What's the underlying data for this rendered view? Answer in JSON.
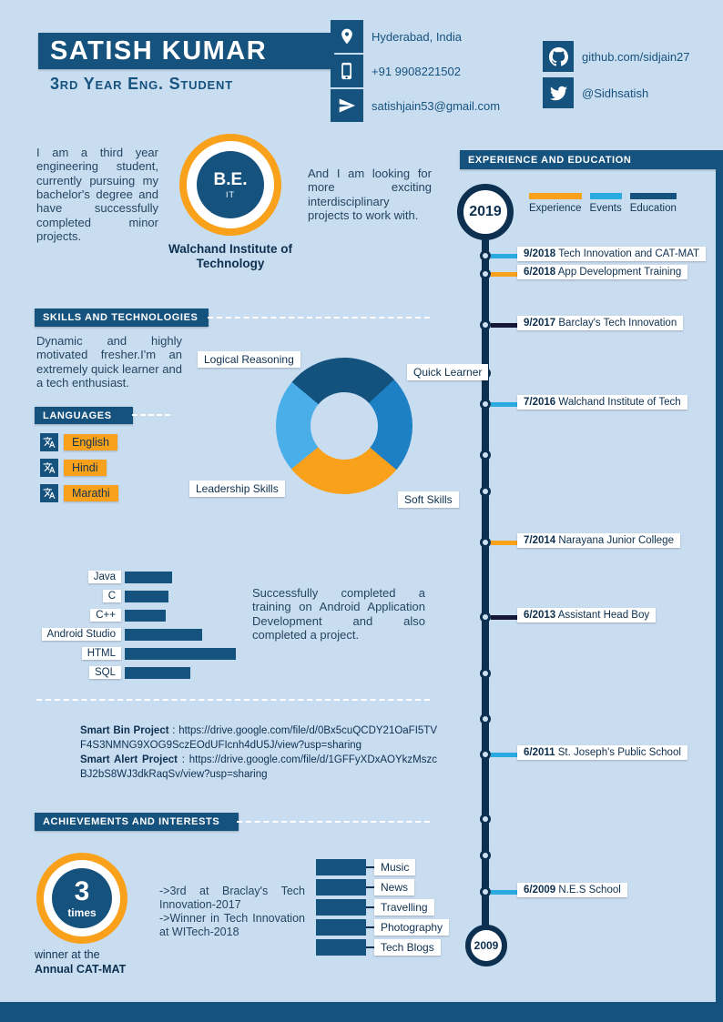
{
  "page": {
    "bg": "#c9ddf1",
    "brand_dark": "#16527e",
    "navy": "#0d3050",
    "orange": "#f9a11b",
    "lightblue": "#29abe2"
  },
  "header": {
    "name": "SATISH KUMAR",
    "subtitle": "3rd Year Eng. Student",
    "contacts": [
      {
        "icon": "location-pin",
        "text": "Hyderabad, India"
      },
      {
        "icon": "mobile-phone",
        "text": "+91 9908221502"
      },
      {
        "icon": "paper-plane",
        "text": "satishjain53@gmail.com"
      }
    ],
    "social": [
      {
        "icon": "github",
        "text": "github.com/sidjain27"
      },
      {
        "icon": "twitter",
        "text": "@Sidhsatish"
      }
    ]
  },
  "about": {
    "intro": "I am a third year engineering student, currently pursuing my bachelor's degree and have successfully completed minor projects.",
    "badge_title": "B.E.",
    "badge_sub": "IT",
    "institute": "Walchand Institute of Technology",
    "outro": "And I am looking for more exciting interdisciplinary projects to work with."
  },
  "skills": {
    "title": "SKILLS AND TECHNOLOGIES",
    "description": "Dynamic and highly motivated fresher.I'm an extremely quick learner and a tech enthusiast."
  },
  "languages": {
    "title": "LANGUAGES",
    "items": [
      "English",
      "Hindi",
      "Marathi"
    ]
  },
  "strengths_donut": {
    "type": "pie",
    "labels": [
      "Logical Reasoning",
      "Quick Learner",
      "Soft Skills",
      "Leadership Skills"
    ],
    "values": [
      27,
      23,
      28,
      22
    ],
    "colors": [
      "#14527e",
      "#1d80c4",
      "#f9a11b",
      "#4aaee8"
    ]
  },
  "tech_chart": {
    "type": "bar",
    "categories": [
      "Java",
      "C",
      "C++",
      "Android Studio",
      "HTML",
      "SQL"
    ],
    "values": [
      43,
      39,
      37,
      70,
      100,
      59
    ],
    "max": 100
  },
  "training_note": "Successfully completed a training on Android Application Development and also completed a project.",
  "projects": [
    {
      "label": "Smart Bin Project",
      "url": "https://drive.google.com/file/d/0Bx5cuQCDY21OaFI5TVF4S3NMNG9XOG9SczEOdUFIcnh4dU5J/view?usp=sharing"
    },
    {
      "label": "Smart Alert Project",
      "url": "https://drive.google.com/file/d/1GFFyXDxAOYkzMszcBJ2bS8WJ3dkRaqSv/view?usp=sharing"
    }
  ],
  "achievements": {
    "title": "ACHIEVEMENTS AND INTERESTS",
    "badge_number": "3",
    "badge_label": "times",
    "caption_line1": "winner at the",
    "caption_line2": "Annual CAT-MAT",
    "notes": [
      "->3rd at Braclay's Tech Innovation-2017",
      "->Winner in Tech Innovation at WITech-2018"
    ]
  },
  "interests": [
    "Music",
    "News",
    "Travelling",
    "Photography",
    "Tech Blogs"
  ],
  "timeline": {
    "title": "EXPERIENCE AND EDUCATION",
    "top_year": "2019",
    "bottom_year": "2009",
    "legend": [
      {
        "label": "Experience",
        "color": "#f9a11b"
      },
      {
        "label": "Events",
        "color": "#29abe2"
      },
      {
        "label": "Education",
        "color": "#16527e"
      }
    ],
    "items": [
      {
        "date": "9/2018",
        "text": "Tech Innovation and CAT-MAT",
        "color": "#29abe2"
      },
      {
        "date": "6/2018",
        "text": "App Development Training",
        "color": "#f9a11b"
      },
      {
        "date": "9/2017",
        "text": "Barclay's Tech Innovation",
        "color": "#161635"
      },
      {
        "date": "7/2016",
        "text": "Walchand Institute of Tech",
        "color": "#29abe2"
      },
      {
        "date": "7/2014",
        "text": "Narayana Junior College",
        "color": "#f9a11b"
      },
      {
        "date": "6/2013",
        "text": "Assistant Head Boy",
        "color": "#161635"
      },
      {
        "date": "6/2011",
        "text": "St. Joseph's Public School",
        "color": "#29abe2"
      },
      {
        "date": "6/2009",
        "text": "N.E.S School",
        "color": "#29abe2"
      }
    ]
  }
}
